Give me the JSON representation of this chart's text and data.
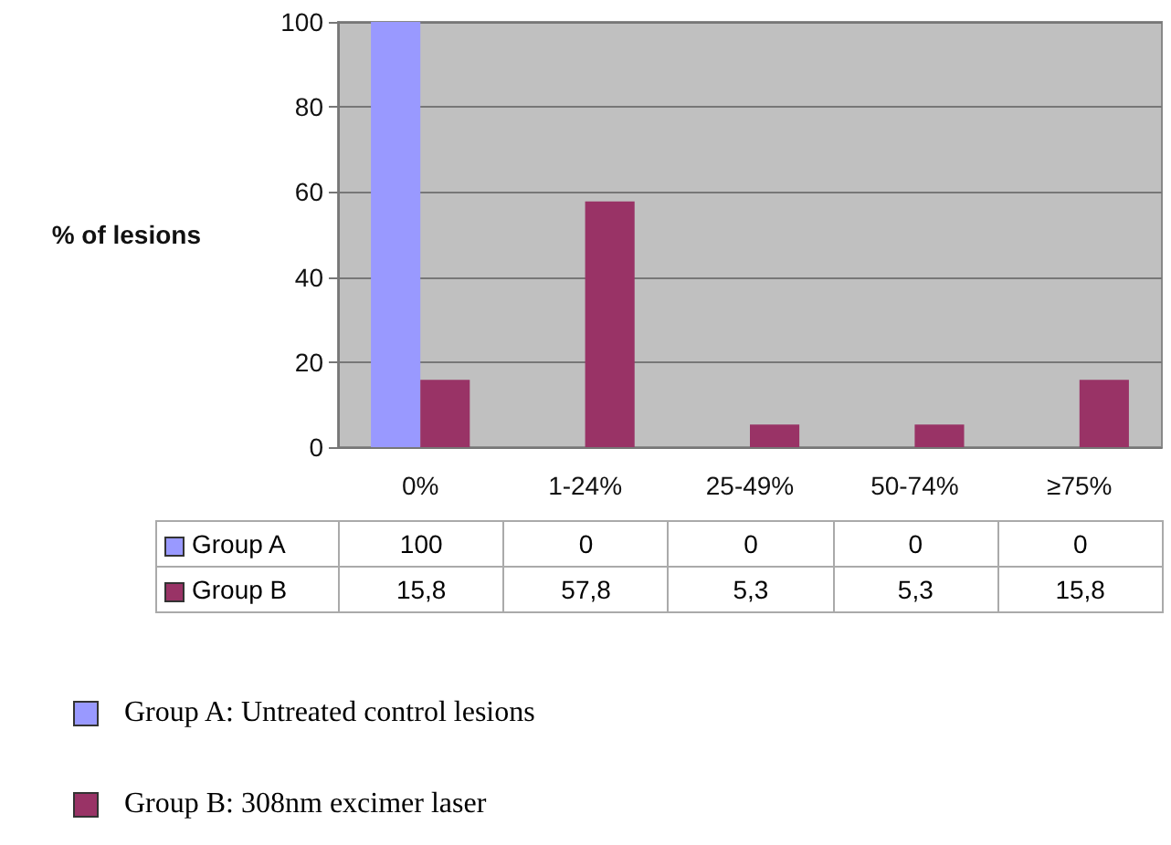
{
  "chart_data": {
    "type": "bar",
    "ylabel": "% of lesions",
    "categories": [
      "0%",
      "1-24%",
      "25-49%",
      "50-74%",
      "≥75%"
    ],
    "series": [
      {
        "name": "Group A",
        "color": "#9999ff",
        "values": [
          100,
          0,
          0,
          0,
          0
        ],
        "value_labels": [
          "100",
          "0",
          "0",
          "0",
          "0"
        ]
      },
      {
        "name": "Group B",
        "color": "#993366",
        "values": [
          15.8,
          57.8,
          5.3,
          5.3,
          15.8
        ],
        "value_labels": [
          "15,8",
          "57,8",
          "5,3",
          "5,3",
          "15,8"
        ]
      }
    ],
    "legend": "bottom",
    "ylim": [
      0,
      100
    ],
    "yticks": [
      0,
      20,
      40,
      60,
      80,
      100
    ],
    "grid": "y",
    "annotations": [
      "Group A: Untreated control lesions",
      "Group B: 308nm excimer laser"
    ]
  }
}
